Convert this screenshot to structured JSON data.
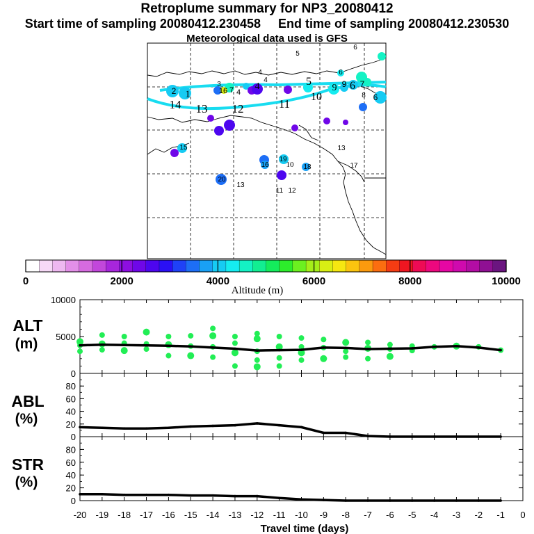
{
  "header": {
    "title": "Retroplume summary for NP3_20080412",
    "start_label": "Start time of sampling",
    "start_value": "20080412.230458",
    "end_label": "End time of sampling",
    "end_value": "20080412.230530",
    "meteo": "Meteorological data used is GFS"
  },
  "colorbar": {
    "title": "Altitude (m)",
    "ticks": [
      "0",
      "2000",
      "4000",
      "6000",
      "8000",
      "10000"
    ],
    "colors": [
      "#ffffff",
      "#f6d9f6",
      "#eeb8f0",
      "#e38fe8",
      "#d66be0",
      "#c247db",
      "#a726dc",
      "#8d0fe0",
      "#6f07e8",
      "#4d06ef",
      "#2a10f5",
      "#1f41f7",
      "#1d6ef6",
      "#19a0f5",
      "#16cbf3",
      "#15ecf0",
      "#14f2c4",
      "#12ee92",
      "#14ec5c",
      "#2ded2b",
      "#6cf020",
      "#a5ef19",
      "#d8ee14",
      "#f6e711",
      "#fbc40f",
      "#fb9a0e",
      "#fb6e10",
      "#f53c13",
      "#ef1621",
      "#ee0b55",
      "#ed087e",
      "#e607a4",
      "#cf0aae",
      "#b30da4",
      "#8f1093",
      "#6b1580"
    ]
  },
  "map": {
    "labels": [
      "1",
      "2",
      "3",
      "4",
      "4",
      "4",
      "4",
      "5",
      "5",
      "6",
      "6",
      "6",
      "6",
      "7",
      "7",
      "8",
      "9",
      "9",
      "10",
      "10",
      "11",
      "11",
      "12",
      "12",
      "13",
      "13",
      "13",
      "14",
      "15",
      "16",
      "16",
      "17",
      "18",
      "19",
      "20"
    ]
  },
  "chart_data": [
    {
      "type": "line",
      "panel": "ALT",
      "ylabel": "ALT",
      "yunit": "(m)",
      "ylim": [
        0,
        10000
      ],
      "yticks": [
        "0",
        "5000",
        "10000"
      ],
      "x": [
        -20,
        -19,
        -18,
        -17,
        -16,
        -15,
        -14,
        -13,
        -12,
        -11,
        -10,
        -9,
        -8,
        -7,
        -6,
        -5,
        -4,
        -3,
        -2,
        -1
      ],
      "values": [
        3800,
        3900,
        3850,
        3800,
        3750,
        3650,
        3500,
        3350,
        3100,
        3150,
        3200,
        3500,
        3450,
        3300,
        3350,
        3400,
        3600,
        3700,
        3500,
        3150
      ],
      "scatter": [
        {
          "x": -20,
          "y": [
            3000,
            3800,
            4300
          ]
        },
        {
          "x": -19,
          "y": [
            3200,
            4000,
            5200
          ]
        },
        {
          "x": -18,
          "y": [
            3100,
            4100,
            5000
          ]
        },
        {
          "x": -17,
          "y": [
            3300,
            4000,
            5600
          ]
        },
        {
          "x": -16,
          "y": [
            2400,
            3900,
            5000
          ]
        },
        {
          "x": -15,
          "y": [
            2400,
            3700,
            5100
          ]
        },
        {
          "x": -14,
          "y": [
            2200,
            3600,
            5100,
            6100
          ]
        },
        {
          "x": -13,
          "y": [
            1000,
            2800,
            4100,
            5000
          ]
        },
        {
          "x": -12,
          "y": [
            900,
            1800,
            3000,
            4700,
            5400
          ]
        },
        {
          "x": -11,
          "y": [
            1000,
            2100,
            3600,
            5000
          ]
        },
        {
          "x": -10,
          "y": [
            1800,
            2800,
            3600,
            4800
          ]
        },
        {
          "x": -9,
          "y": [
            2000,
            3500,
            4600
          ]
        },
        {
          "x": -8,
          "y": [
            2200,
            3000,
            4200
          ]
        },
        {
          "x": -7,
          "y": [
            2000,
            3400,
            4200
          ]
        },
        {
          "x": -6,
          "y": [
            2300,
            3300,
            3900
          ]
        },
        {
          "x": -5,
          "y": [
            3100,
            3700
          ]
        },
        {
          "x": -4,
          "y": [
            3600
          ]
        },
        {
          "x": -3,
          "y": [
            3700
          ]
        },
        {
          "x": -2,
          "y": [
            3600
          ]
        },
        {
          "x": -1,
          "y": [
            3150
          ]
        }
      ]
    },
    {
      "type": "line",
      "panel": "ABL",
      "ylabel": "ABL",
      "yunit": "(%)",
      "ylim": [
        0,
        100
      ],
      "yticks": [
        "0",
        "20",
        "40",
        "60",
        "80"
      ],
      "x": [
        -20,
        -19,
        -18,
        -17,
        -16,
        -15,
        -14,
        -13,
        -12,
        -11,
        -10,
        -9,
        -8,
        -7,
        -6,
        -5,
        -4,
        -3,
        -2,
        -1
      ],
      "values": [
        15,
        14,
        13,
        13,
        14,
        16,
        17,
        18,
        21,
        18,
        15,
        6,
        6,
        1,
        0,
        0,
        0,
        0,
        0,
        0
      ]
    },
    {
      "type": "line",
      "panel": "STR",
      "ylabel": "STR",
      "yunit": "(%)",
      "ylim": [
        0,
        100
      ],
      "yticks": [
        "0",
        "20",
        "40",
        "60",
        "80"
      ],
      "x": [
        -20,
        -19,
        -18,
        -17,
        -16,
        -15,
        -14,
        -13,
        -12,
        -11,
        -10,
        -9,
        -8,
        -7,
        -6,
        -5,
        -4,
        -3,
        -2,
        -1
      ],
      "values": [
        10,
        10,
        9,
        9,
        9,
        8,
        8,
        7,
        7,
        4,
        2,
        1,
        0,
        0,
        0,
        0,
        0,
        0,
        0,
        0
      ]
    }
  ],
  "xaxis": {
    "ticks": [
      "-20",
      "-19",
      "-18",
      "-17",
      "-16",
      "-15",
      "-14",
      "-13",
      "-12",
      "-11",
      "-10",
      "-9",
      "-8",
      "-7",
      "-6",
      "-5",
      "-4",
      "-3",
      "-2",
      "-1",
      "0"
    ],
    "label": "Travel time (days)"
  },
  "colors": {
    "scatter": "#22ee55",
    "line": "#000000",
    "track": "#18dcf0"
  }
}
